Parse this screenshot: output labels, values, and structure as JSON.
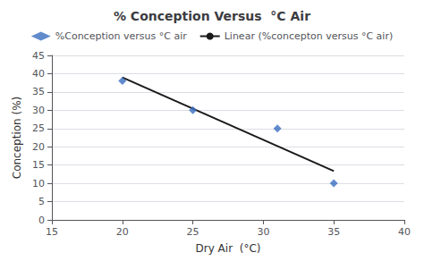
{
  "chart_data": {
    "type": "scatter",
    "title": "% Conception Versus  °C Air",
    "xlabel": "Dry Air  (°C)",
    "ylabel": "Conception (%)",
    "series": [
      {
        "name": "%Conception versus °C air",
        "type": "scatter",
        "color": "#3a6ebf",
        "marker": "diamond",
        "x": [
          20,
          25,
          31,
          35
        ],
        "values": [
          38,
          30,
          25,
          10
        ]
      },
      {
        "name": "Linear (%concepton versus °C air)",
        "type": "line",
        "color": "#1a1a1a",
        "line_style": "solid",
        "x": [
          20,
          35
        ],
        "values": [
          38.98279158699809,
          13.37093690248566
        ]
      }
    ],
    "xlim": [
      15,
      40
    ],
    "xticks": [
      15,
      20,
      25,
      30,
      35,
      40
    ],
    "ylim": [
      0,
      45
    ],
    "yticks": [
      0,
      5,
      10,
      15,
      20,
      25,
      30,
      35,
      40,
      45
    ],
    "grid": "y",
    "legend": "top"
  }
}
